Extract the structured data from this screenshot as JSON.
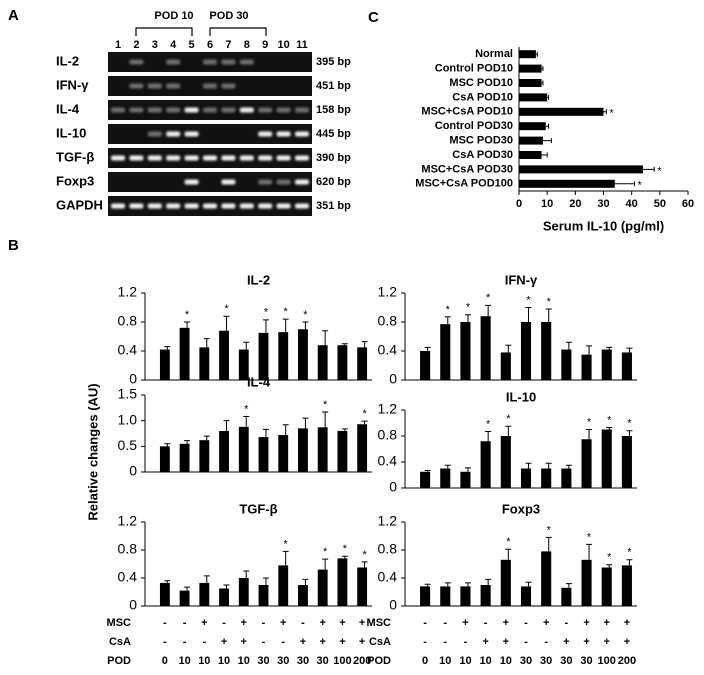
{
  "panel_a": {
    "label": "A",
    "lanes": [
      "1",
      "2",
      "3",
      "4",
      "5",
      "6",
      "7",
      "8",
      "9",
      "10",
      "11"
    ],
    "groups": [
      "POD 10",
      "POD 30"
    ],
    "genes": [
      "IL-2",
      "IFN-γ",
      "IL-4",
      "IL-10",
      "TGF-β",
      "Foxp3",
      "GAPDH"
    ],
    "sizes": [
      "395 bp",
      "451 bp",
      "158 bp",
      "445 bp",
      "390 bp",
      "620 bp",
      "351 bp"
    ]
  },
  "panel_b": {
    "label": "B",
    "ylabel": "Relative changes (AU)",
    "rows": [
      {
        "name": "MSC",
        "marks": [
          "-",
          "-",
          "+",
          "-",
          "+",
          "-",
          "+",
          "-",
          "+",
          "+",
          "+"
        ]
      },
      {
        "name": "CsA",
        "marks": [
          "-",
          "-",
          "-",
          "+",
          "+",
          "-",
          "-",
          "+",
          "+",
          "+",
          "+"
        ]
      },
      {
        "name": "POD",
        "marks": [
          "0",
          "10",
          "10",
          "10",
          "10",
          "30",
          "30",
          "30",
          "30",
          "100",
          "200"
        ]
      }
    ]
  },
  "panel_c_label": "C",
  "chart_data": [
    {
      "type": "barh",
      "xlabel": "Serum IL-10 (pg/ml)",
      "color": "#000000",
      "categories": [
        "Normal",
        "Control POD10",
        "MSC POD10",
        "CsA POD10",
        "MSC+CsA POD10",
        "Control POD30",
        "MSC POD30",
        "CsA POD30",
        "MSC+CsA POD30",
        "MSC+CsA POD100"
      ],
      "values": [
        6,
        8,
        8,
        10,
        30,
        9.5,
        8.5,
        8,
        44,
        34
      ],
      "errors": [
        0.5,
        0.5,
        0.5,
        0.5,
        1,
        1,
        3,
        2,
        4,
        7
      ],
      "significance": [
        null,
        null,
        null,
        null,
        "*",
        null,
        null,
        null,
        "*",
        "*"
      ],
      "xlim": [
        0,
        60
      ],
      "xticks": [
        0,
        10,
        20,
        30,
        40,
        50,
        60
      ]
    },
    {
      "type": "bar",
      "title": "IL-2",
      "color": "#000000",
      "values": [
        0.42,
        0.72,
        0.45,
        0.68,
        0.42,
        0.65,
        0.66,
        0.7,
        0.48,
        0.48,
        0.45
      ],
      "errors": [
        0.04,
        0.08,
        0.12,
        0.2,
        0.1,
        0.18,
        0.18,
        0.1,
        0.2,
        0.02,
        0.08
      ],
      "significance": [
        null,
        "*",
        null,
        "*",
        null,
        "*",
        "*",
        "*",
        null,
        null,
        null
      ],
      "ylim": [
        0,
        1.2
      ],
      "yticks": [
        0,
        0.4,
        0.8,
        1.2
      ]
    },
    {
      "type": "bar",
      "title": "IFN-γ",
      "color": "#000000",
      "values": [
        0.4,
        0.77,
        0.8,
        0.88,
        0.38,
        0.8,
        0.8,
        0.42,
        0.35,
        0.42,
        0.38
      ],
      "errors": [
        0.05,
        0.1,
        0.1,
        0.15,
        0.1,
        0.2,
        0.18,
        0.1,
        0.12,
        0.03,
        0.06
      ],
      "significance": [
        null,
        "*",
        "*",
        "*",
        null,
        "*",
        "*",
        null,
        null,
        null,
        null
      ],
      "ylim": [
        0,
        1.2
      ],
      "yticks": [
        0,
        0.4,
        0.8,
        1.2
      ]
    },
    {
      "type": "bar",
      "title": "IL-4",
      "color": "#000000",
      "values": [
        0.5,
        0.55,
        0.62,
        0.8,
        0.88,
        0.68,
        0.72,
        0.85,
        0.87,
        0.8,
        0.93
      ],
      "errors": [
        0.05,
        0.06,
        0.08,
        0.2,
        0.2,
        0.15,
        0.2,
        0.2,
        0.3,
        0.04,
        0.06
      ],
      "significance": [
        null,
        null,
        null,
        null,
        "*",
        null,
        null,
        null,
        "*",
        null,
        "*"
      ],
      "ylim": [
        0,
        1.5
      ],
      "yticks": [
        0,
        0.5,
        {
          "value": 1,
          "label": "1.0"
        },
        1.5
      ]
    },
    {
      "type": "bar",
      "title": "IL-10",
      "color": "#000000",
      "values": [
        0.25,
        0.3,
        0.25,
        0.72,
        0.8,
        0.3,
        0.3,
        0.3,
        0.75,
        0.9,
        0.8
      ],
      "errors": [
        0.02,
        0.05,
        0.06,
        0.15,
        0.15,
        0.08,
        0.08,
        0.05,
        0.15,
        0.03,
        0.08
      ],
      "significance": [
        null,
        null,
        null,
        "*",
        "*",
        null,
        null,
        null,
        "*",
        "*",
        "*"
      ],
      "ylim": [
        0,
        1.2
      ],
      "yticks": [
        0,
        0.4,
        0.8,
        1.2
      ]
    },
    {
      "type": "bar",
      "title": "TGF-β",
      "color": "#000000",
      "values": [
        0.33,
        0.22,
        0.33,
        0.25,
        0.4,
        0.3,
        0.58,
        0.3,
        0.52,
        0.68,
        0.55
      ],
      "errors": [
        0.03,
        0.05,
        0.1,
        0.05,
        0.1,
        0.1,
        0.2,
        0.08,
        0.15,
        0.03,
        0.08
      ],
      "significance": [
        null,
        null,
        null,
        null,
        null,
        null,
        "*",
        null,
        "*",
        "*",
        "*"
      ],
      "ylim": [
        0,
        1.2
      ],
      "yticks": [
        0,
        0.4,
        0.8,
        1.2
      ]
    },
    {
      "type": "bar",
      "title": "Foxp3",
      "color": "#000000",
      "values": [
        0.28,
        0.28,
        0.28,
        0.3,
        0.66,
        0.28,
        0.78,
        0.26,
        0.66,
        0.55,
        0.58
      ],
      "errors": [
        0.03,
        0.05,
        0.05,
        0.08,
        0.15,
        0.06,
        0.2,
        0.06,
        0.22,
        0.04,
        0.08
      ],
      "significance": [
        null,
        null,
        null,
        null,
        "*",
        null,
        "*",
        null,
        "*",
        "*",
        "*"
      ],
      "ylim": [
        0,
        1.2
      ],
      "yticks": [
        0,
        0.4,
        0.8,
        1.2
      ]
    }
  ]
}
